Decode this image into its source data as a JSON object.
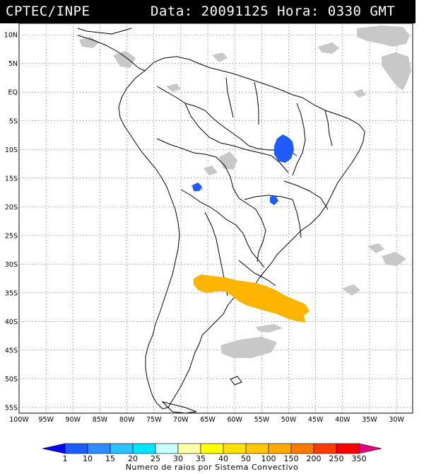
{
  "header": {
    "left_text": "CPTEC/INPE",
    "right_text": "Data: 20091125 Hora: 0330 GMT"
  },
  "map": {
    "lon_range": [
      -100,
      -27
    ],
    "lat_range": [
      -56,
      12
    ],
    "lat_labels": [
      "10N",
      "5N",
      "EQ",
      "5S",
      "10S",
      "15S",
      "20S",
      "25S",
      "30S",
      "35S",
      "40S",
      "45S",
      "50S",
      "55S"
    ],
    "lat_values": [
      10,
      5,
      0,
      -5,
      -10,
      -15,
      -20,
      -25,
      -30,
      -35,
      -40,
      -45,
      -50,
      -55
    ],
    "lon_labels": [
      "100W",
      "95W",
      "90W",
      "85W",
      "80W",
      "75W",
      "70W",
      "65W",
      "60W",
      "55W",
      "50W",
      "45W",
      "40W",
      "35W",
      "30W"
    ],
    "lon_values": [
      -100,
      -95,
      -90,
      -85,
      -80,
      -75,
      -70,
      -65,
      -60,
      -55,
      -50,
      -45,
      -40,
      -35,
      -30
    ],
    "grid": "dotted",
    "colors": {
      "coast": "#000000",
      "cloud": "#c8c8c8",
      "blue_cell": "#1f5bff",
      "orange_cell": "#ffb400"
    }
  },
  "legend": {
    "title": "Numero de raios por Sistema Convectivo",
    "labels": [
      "1",
      "10",
      "15",
      "20",
      "25",
      "30",
      "35",
      "40",
      "50",
      "100",
      "150",
      "200",
      "250",
      "350"
    ],
    "colors": [
      "#0000ff",
      "#1e5aff",
      "#2d8cff",
      "#28c3ff",
      "#00e6ff",
      "#c8ffff",
      "#ffffaa",
      "#ffff00",
      "#ffe100",
      "#ffc800",
      "#ffaa00",
      "#ff7800",
      "#ff3c00",
      "#ff0000",
      "#e6007d"
    ]
  }
}
